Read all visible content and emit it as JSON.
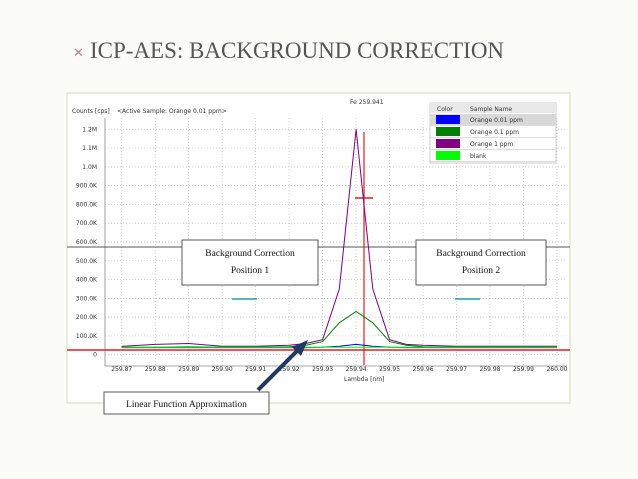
{
  "title": "ICP-AES: BACKGROUND CORRECTION",
  "chart_data": {
    "type": "line",
    "title": "Fe 259.941",
    "subtitle": "<Active Sample: Orange 0.01 ppm>",
    "ylabel": "Counts [cps]",
    "xlabel": "Lambda [nm]",
    "legend_headers": [
      "Color",
      "Sample Name"
    ],
    "legend": "top-right",
    "grid": true,
    "x": [
      259.87,
      259.88,
      259.89,
      259.9,
      259.91,
      259.92,
      259.925,
      259.93,
      259.935,
      259.94,
      259.945,
      259.95,
      259.955,
      259.96,
      259.97,
      259.98,
      259.99,
      260.0
    ],
    "series": [
      {
        "name": "Orange 0.01 ppm",
        "color": "#0000ff",
        "values": [
          38000,
          38000,
          38000,
          38000,
          38000,
          38000,
          38000,
          40000,
          45000,
          55000,
          45000,
          40000,
          38000,
          38000,
          38000,
          38000,
          38000,
          38000
        ]
      },
      {
        "name": "Orange 0.1 ppm",
        "color": "#008000",
        "values": [
          40000,
          40000,
          42000,
          40000,
          40000,
          42000,
          50000,
          70000,
          170000,
          230000,
          170000,
          70000,
          50000,
          42000,
          40000,
          40000,
          40000,
          40000
        ]
      },
      {
        "name": "Orange 1  ppm",
        "color": "#800080",
        "values": [
          45000,
          55000,
          60000,
          45000,
          45000,
          50000,
          60000,
          80000,
          350000,
          1200000,
          350000,
          80000,
          55000,
          50000,
          45000,
          45000,
          45000,
          45000
        ]
      },
      {
        "name": "blank",
        "color": "#00ff00",
        "values": [
          40000,
          40000,
          40000,
          40000,
          40000,
          40000,
          40000,
          40000,
          40000,
          40000,
          40000,
          40000,
          40000,
          40000,
          40000,
          40000,
          40000,
          40000
        ]
      }
    ],
    "xlim": [
      259.865,
      260.003
    ],
    "xticks": [
      259.87,
      259.88,
      259.89,
      {
        "value": 259.9,
        "label": "259.90"
      },
      259.91,
      259.92,
      259.93,
      259.94,
      259.95,
      259.96,
      259.97,
      259.98,
      259.99,
      {
        "value": 260.0,
        "label": "260.00"
      }
    ],
    "ylim": [
      -60000,
      1260000
    ],
    "yticks": [
      0,
      {
        "value": 100000,
        "label": "100.0K"
      },
      {
        "value": 200000,
        "label": "200.0K"
      },
      {
        "value": 300000,
        "label": "300.0K"
      },
      {
        "value": 400000,
        "label": "400.0K"
      },
      {
        "value": 500000,
        "label": "500.0K"
      },
      {
        "value": 600000,
        "label": "600.0K"
      },
      {
        "value": 700000,
        "label": "700.0K"
      },
      {
        "value": 800000,
        "label": "800.0K"
      },
      {
        "value": 900000,
        "label": "900.0K"
      },
      {
        "value": 1000000,
        "label": "1.0M"
      },
      {
        "value": 1100000,
        "label": "1.1M"
      },
      {
        "value": 1200000,
        "label": "1.2M"
      }
    ],
    "annotations": [
      [
        "Background Correction",
        "Position 1"
      ],
      [
        "Background Correction",
        "Position 2"
      ],
      [
        "Linear Function Approximation"
      ]
    ]
  }
}
